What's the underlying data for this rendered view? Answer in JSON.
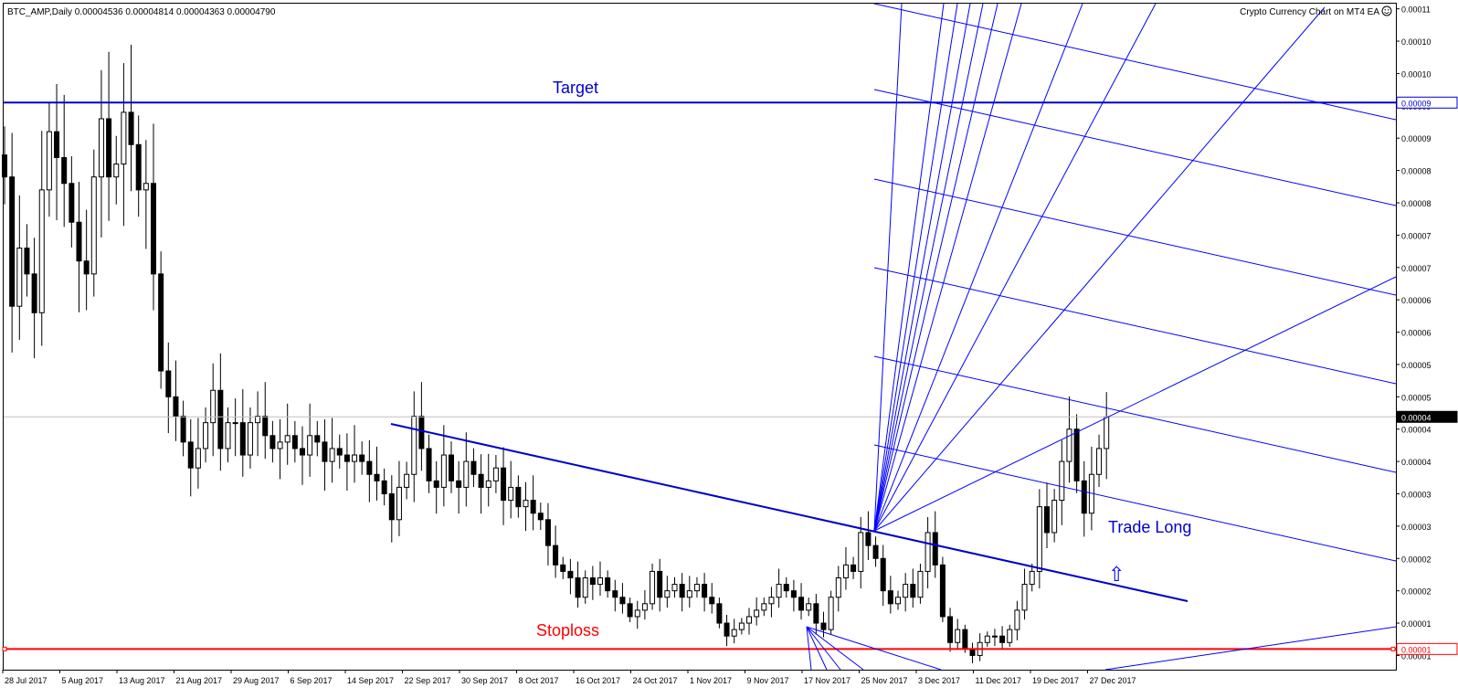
{
  "header": {
    "symbol_info": "BTC_AMP,Daily  0.00004536 0.00004814 0.00004363 0.00004790",
    "ea_label": "Crypto Currency Chart on MT4 EA",
    "ea_icon": "smiley-icon"
  },
  "annotations": {
    "target": "Target",
    "stoploss": "Stoploss",
    "trade_long": "Trade Long",
    "arrow_glyph": "⇧"
  },
  "colors": {
    "candle_body": "#000000",
    "target_line": "#0000cc",
    "stoploss_line": "#ff0000",
    "trend_line": "#0000cc",
    "gann_lines": "#0000ff",
    "current_price_line": "#c0c0c0",
    "target_text": "#0000cc",
    "stoploss_text": "#ff0000"
  },
  "chart_data": {
    "type": "candlestick",
    "symbol": "BTC_AMP",
    "timeframe": "Daily",
    "ylim": [
      8.8e-06,
      0.0001118
    ],
    "y_tick_labels": [
      "0.00011",
      "0.00010",
      "0.00010",
      "0.00009",
      "0.00009",
      "0.00008",
      "0.00008",
      "0.00007",
      "0.00007",
      "0.00006",
      "0.00006",
      "0.00005",
      "0.00005",
      "0.00004",
      "0.00004",
      "0.00003",
      "0.00003",
      "0.00002",
      "0.00002",
      "0.00001",
      "0.00001"
    ],
    "y_tick_values": [
      0.000111,
      0.000106,
      0.000101,
      9.6e-05,
      9.1e-05,
      8.6e-05,
      8.1e-05,
      7.6e-05,
      7.1e-05,
      6.6e-05,
      6.1e-05,
      5.6e-05,
      5.1e-05,
      4.6e-05,
      4.1e-05,
      3.6e-05,
      3.1e-05,
      2.6e-05,
      2.1e-05,
      1.6e-05,
      1.1e-05
    ],
    "x_tick_labels": [
      "28 Jul 2017",
      "5 Aug 2017",
      "13 Aug 2017",
      "21 Aug 2017",
      "29 Aug 2017",
      "6 Sep 2017",
      "14 Sep 2017",
      "22 Sep 2017",
      "30 Sep 2017",
      "8 Oct 2017",
      "16 Oct 2017",
      "24 Oct 2017",
      "1 Nov 2017",
      "9 Nov 2017",
      "17 Nov 2017",
      "25 Nov 2017",
      "3 Dec 2017",
      "11 Dec 2017",
      "19 Dec 2017",
      "27 Dec 2017"
    ],
    "price_markers": {
      "target": {
        "label": "0.00009",
        "value": 9.65e-05
      },
      "current": {
        "label": "0.00004",
        "value": 4.79e-05
      },
      "stoploss": {
        "label": "0.00001",
        "value": 1.2e-05
      }
    },
    "close": [
      8.5e-05,
      6.5e-05,
      7.4e-05,
      7e-05,
      6.4e-05,
      8.3e-05,
      9.2e-05,
      8.8e-05,
      8.4e-05,
      7.8e-05,
      7.2e-05,
      7e-05,
      8.5e-05,
      9.4e-05,
      8.5e-05,
      8.7e-05,
      9.5e-05,
      9e-05,
      8.3e-05,
      8.4e-05,
      7e-05,
      5.5e-05,
      5.1e-05,
      4.8e-05,
      4.4e-05,
      4e-05,
      4.3e-05,
      4.7e-05,
      5.2e-05,
      4.3e-05,
      4.7e-05,
      4.7e-05,
      4.2e-05,
      4.7e-05,
      4.8e-05,
      4.5e-05,
      4.3e-05,
      4.4e-05,
      4.5e-05,
      4.3e-05,
      4.2e-05,
      4.5e-05,
      4.4e-05,
      4.1e-05,
      4.3e-05,
      4.2e-05,
      4.1e-05,
      4.2e-05,
      4.1e-05,
      3.9e-05,
      3.8e-05,
      3.6e-05,
      3.2e-05,
      3.7e-05,
      3.9e-05,
      4.8e-05,
      4.3e-05,
      3.8e-05,
      3.7e-05,
      4.2e-05,
      3.8e-05,
      3.7e-05,
      4.1e-05,
      3.9e-05,
      3.7e-05,
      3.8e-05,
      4e-05,
      3.5e-05,
      3.7e-05,
      3.4e-05,
      3.5e-05,
      3.3e-05,
      3.2e-05,
      2.8e-05,
      2.5e-05,
      2.4e-05,
      2.3e-05,
      2e-05,
      2.3e-05,
      2.2e-05,
      2.3e-05,
      2.1e-05,
      2e-05,
      1.9e-05,
      1.7e-05,
      1.8e-05,
      1.9e-05,
      2.4e-05,
      2e-05,
      2.1e-05,
      2.2e-05,
      2e-05,
      2.1e-05,
      2.2e-05,
      2e-05,
      1.9e-05,
      1.6e-05,
      1.4e-05,
      1.5e-05,
      1.6e-05,
      1.7e-05,
      1.8e-05,
      1.9e-05,
      2e-05,
      2.2e-05,
      2.1e-05,
      2e-05,
      1.8e-05,
      1.9e-05,
      1.6e-05,
      1.5e-05,
      2e-05,
      2.3e-05,
      2.5e-05,
      2.4e-05,
      3e-05,
      2.8e-05,
      2.6e-05,
      2.1e-05,
      1.9e-05,
      2e-05,
      2.2e-05,
      2e-05,
      2.4e-05,
      3e-05,
      2.5e-05,
      1.7e-05,
      1.3e-05,
      1.5e-05,
      1.2e-05,
      1.1e-05,
      1.3e-05,
      1.4e-05,
      1.4e-05,
      1.3e-05,
      1.5e-05,
      1.8e-05,
      2.2e-05,
      2.4e-05,
      3.4e-05,
      3e-05,
      3.5e-05,
      4.1e-05,
      4.6e-05,
      3.8e-05,
      3.3e-05,
      3.9e-05,
      4.3e-05,
      4.79e-05
    ]
  }
}
